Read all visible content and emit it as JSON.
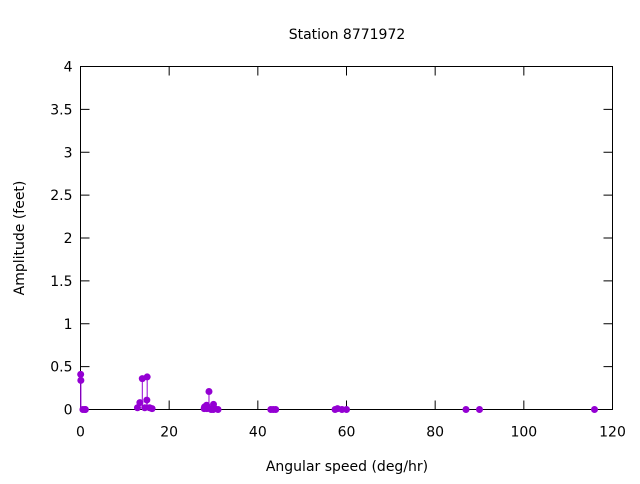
{
  "chart_data": {
    "type": "scatter",
    "style": "impulses with points",
    "title": "Station 8771972",
    "xlabel": "Angular speed (deg/hr)",
    "ylabel": "Amplitude (feet)",
    "xlim": [
      0,
      120
    ],
    "ylim": [
      0,
      4
    ],
    "xticks": [
      "0",
      "20",
      "40",
      "60",
      "80",
      "100",
      "120"
    ],
    "yticks": [
      "0",
      "0.5",
      "1",
      "1.5",
      "2",
      "2.5",
      "3",
      "3.5",
      "4"
    ],
    "grid": false,
    "color": "#9400d3",
    "points": [
      {
        "x": 0.04,
        "y": 0.41
      },
      {
        "x": 0.08,
        "y": 0.34
      },
      {
        "x": 0.54,
        "y": 0.0
      },
      {
        "x": 1.02,
        "y": 0.0
      },
      {
        "x": 1.1,
        "y": 0.0
      },
      {
        "x": 12.85,
        "y": 0.02
      },
      {
        "x": 13.4,
        "y": 0.08
      },
      {
        "x": 13.94,
        "y": 0.36
      },
      {
        "x": 14.49,
        "y": 0.02
      },
      {
        "x": 14.96,
        "y": 0.11
      },
      {
        "x": 15.04,
        "y": 0.38
      },
      {
        "x": 15.59,
        "y": 0.02
      },
      {
        "x": 16.14,
        "y": 0.01
      },
      {
        "x": 27.9,
        "y": 0.01
      },
      {
        "x": 27.97,
        "y": 0.03
      },
      {
        "x": 28.44,
        "y": 0.05
      },
      {
        "x": 28.51,
        "y": 0.01
      },
      {
        "x": 28.98,
        "y": 0.21
      },
      {
        "x": 29.46,
        "y": 0.0
      },
      {
        "x": 29.53,
        "y": 0.01
      },
      {
        "x": 29.96,
        "y": 0.0
      },
      {
        "x": 30.0,
        "y": 0.06
      },
      {
        "x": 30.08,
        "y": 0.02
      },
      {
        "x": 31.02,
        "y": 0.0
      },
      {
        "x": 42.93,
        "y": 0.0
      },
      {
        "x": 43.48,
        "y": 0.0
      },
      {
        "x": 44.03,
        "y": 0.0
      },
      {
        "x": 57.42,
        "y": 0.0
      },
      {
        "x": 57.97,
        "y": 0.01
      },
      {
        "x": 58.98,
        "y": 0.0
      },
      {
        "x": 60.0,
        "y": 0.0
      },
      {
        "x": 86.95,
        "y": 0.0
      },
      {
        "x": 90.0,
        "y": 0.0
      },
      {
        "x": 115.94,
        "y": 0.0
      }
    ]
  }
}
